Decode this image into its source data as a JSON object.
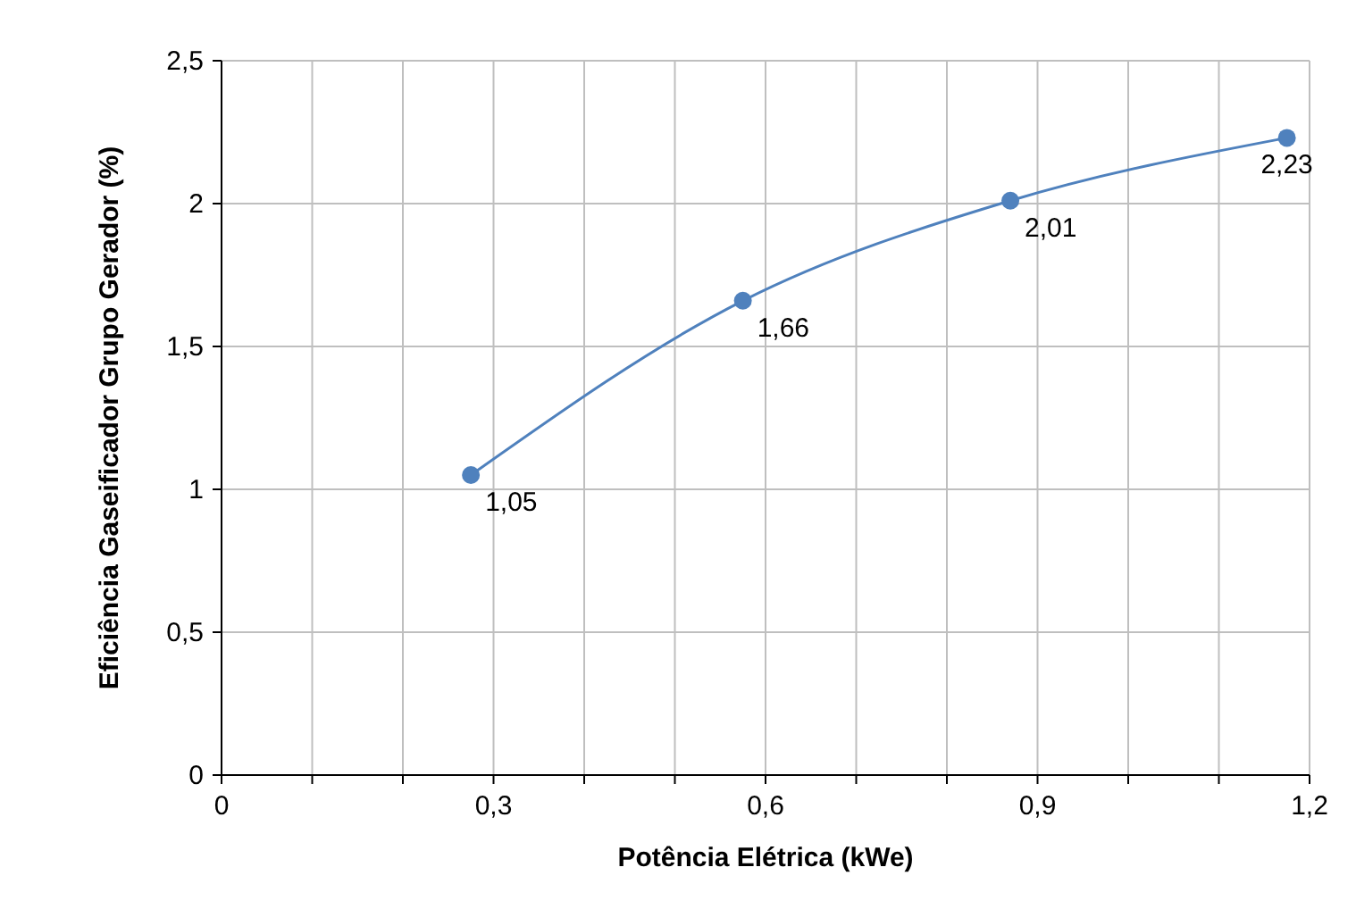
{
  "chart_data": {
    "type": "line",
    "xlabel": "Potência  Elétrica (kWe)",
    "ylabel": "Eficiência  Gaseificador  Grupo Gerador (%)",
    "x": [
      0.275,
      0.575,
      0.87,
      1.175
    ],
    "series": [
      {
        "color": "#4f81bd",
        "values": [
          1.05,
          1.66,
          2.01,
          2.23
        ],
        "value_labels": [
          "1,05",
          "1,66",
          "2,01",
          "2,23"
        ]
      }
    ],
    "xlim": [
      0,
      1.2
    ],
    "xticks": [
      {
        "value": 0,
        "label": "0"
      },
      {
        "value": 0.1,
        "label": null
      },
      {
        "value": 0.2,
        "label": null
      },
      {
        "value": 0.3,
        "label": "0,3"
      },
      {
        "value": 0.4,
        "label": null
      },
      {
        "value": 0.5,
        "label": null
      },
      {
        "value": 0.6,
        "label": "0,6"
      },
      {
        "value": 0.7,
        "label": null
      },
      {
        "value": 0.8,
        "label": null
      },
      {
        "value": 0.9,
        "label": "0,9"
      },
      {
        "value": 1.0,
        "label": null
      },
      {
        "value": 1.1,
        "label": null
      },
      {
        "value": 1.2,
        "label": "1,2"
      }
    ],
    "ylim": [
      0,
      2.5
    ],
    "yticks": [
      {
        "value": 0,
        "label": "0"
      },
      {
        "value": 0.5,
        "label": "0,5"
      },
      {
        "value": 1,
        "label": "1"
      },
      {
        "value": 1.5,
        "label": "1,5"
      },
      {
        "value": 2,
        "label": "2"
      },
      {
        "value": 2.5,
        "label": "2,5"
      }
    ],
    "grid": true,
    "marker": "circle",
    "line_style": "solid"
  }
}
